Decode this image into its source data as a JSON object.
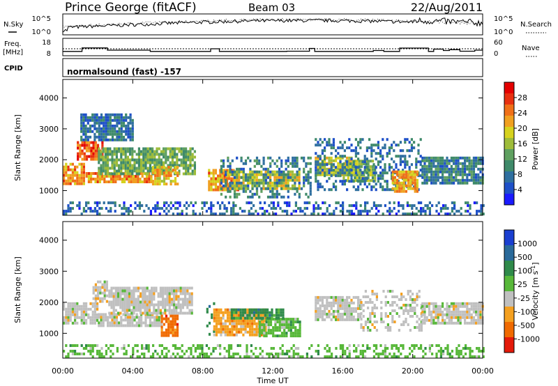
{
  "header": {
    "station": "Prince George (fitACF)",
    "beam": "Beam 03",
    "date": "22/Aug/2011"
  },
  "chart_data": [
    {
      "type": "line",
      "panel": "noise",
      "left_label": "N.Sky",
      "right_label": "N.Search",
      "left_ticks": [
        "10^5",
        "10^0"
      ],
      "right_ticks": [
        "10^5",
        "10^0"
      ]
    },
    {
      "type": "line",
      "panel": "frequency",
      "left_label_top": "Freq.",
      "left_label_bottom": "[MHz]",
      "right_label": "Nave",
      "left_ticks": [
        "18",
        "8"
      ],
      "right_ticks": [
        "60",
        "0"
      ],
      "freq_steps": [
        {
          "t": 0.0,
          "v": 10.5
        },
        {
          "t": 1.1,
          "v": 12.5
        },
        {
          "t": 2.55,
          "v": 11.2
        },
        {
          "t": 5.0,
          "v": 10.5
        },
        {
          "t": 8.45,
          "v": 12.0
        },
        {
          "t": 8.95,
          "v": 10.5
        },
        {
          "t": 12.8,
          "v": 10.6
        },
        {
          "t": 14.1,
          "v": 12.2
        },
        {
          "t": 14.4,
          "v": 10.5
        },
        {
          "t": 17.75,
          "v": 11.0
        },
        {
          "t": 18.35,
          "v": 10.5
        },
        {
          "t": 19.25,
          "v": 12.4
        },
        {
          "t": 20.9,
          "v": 10.5
        },
        {
          "t": 21.2,
          "v": 11.8
        },
        {
          "t": 21.75,
          "v": 11.0
        },
        {
          "t": 22.1,
          "v": 11.5
        },
        {
          "t": 22.7,
          "v": 10.6
        },
        {
          "t": 23.55,
          "v": 11.2
        }
      ]
    },
    {
      "type": "heatmap",
      "panel": "cpid",
      "label": "CPID",
      "text": "normalsound (fast) -157"
    },
    {
      "type": "heatmap",
      "panel": "power",
      "ylabel": "Slant Range [km]",
      "yticks": [
        "4000",
        "3000",
        "2000",
        "1000"
      ],
      "ylim": [
        200,
        4600
      ],
      "colorbar_label": "Power [dB]",
      "colorbar_ticks": [
        "28",
        "24",
        "20",
        "16",
        "12",
        "8",
        "4"
      ],
      "colors": [
        "#1a1aff",
        "#1e50c8",
        "#2f6f9f",
        "#3f8a6a",
        "#5fa060",
        "#9ebc3a",
        "#d6d21e",
        "#f0a020",
        "#f07018",
        "#e83010",
        "#e40000"
      ],
      "regions": [
        {
          "t0": 0.0,
          "t1": 1.2,
          "r0": 1250,
          "r1": 1900,
          "p": 22
        },
        {
          "t0": 0.8,
          "t1": 2.3,
          "r0": 2050,
          "r1": 2600,
          "p": 26
        },
        {
          "t0": 1.3,
          "t1": 5.0,
          "r0": 1300,
          "r1": 1600,
          "p": 22
        },
        {
          "t0": 2.0,
          "t1": 7.6,
          "r0": 1500,
          "r1": 2400,
          "p": 12
        },
        {
          "t0": 5.1,
          "t1": 6.6,
          "r0": 1200,
          "r1": 1800,
          "p": 20
        },
        {
          "t0": 1.0,
          "t1": 4.0,
          "r0": 2600,
          "r1": 3500,
          "p": 6
        },
        {
          "t0": 8.3,
          "t1": 10.0,
          "r0": 1000,
          "r1": 1700,
          "p": 22
        },
        {
          "t0": 9.5,
          "t1": 13.5,
          "r0": 1050,
          "r1": 1650,
          "p": 18
        },
        {
          "t0": 9.0,
          "t1": 14.2,
          "r0": 800,
          "r1": 2100,
          "p": 8
        },
        {
          "t0": 14.4,
          "t1": 16.5,
          "r0": 1500,
          "r1": 2100,
          "p": 18
        },
        {
          "t0": 16.0,
          "t1": 17.8,
          "r0": 1300,
          "r1": 2000,
          "p": 14
        },
        {
          "t0": 14.4,
          "t1": 20.5,
          "r0": 1000,
          "r1": 2700,
          "p": 6
        },
        {
          "t0": 18.8,
          "t1": 20.3,
          "r0": 950,
          "r1": 1650,
          "p": 21
        },
        {
          "t0": 20.5,
          "t1": 24.0,
          "r0": 1200,
          "r1": 2100,
          "p": 8
        },
        {
          "t0": 0.0,
          "t1": 24.0,
          "r0": 250,
          "r1": 650,
          "p": 5
        }
      ]
    },
    {
      "type": "heatmap",
      "panel": "velocity",
      "ylabel": "Slant Range [km]",
      "yticks": [
        "4000",
        "3000",
        "2000",
        "1000"
      ],
      "ylim": [
        200,
        4600
      ],
      "colorbar_label": "Velocity [m s^-1]",
      "colorbar_ticks": [
        "1000",
        "500",
        "100",
        "25",
        "-25",
        "-100",
        "-500",
        "-1000"
      ],
      "colors": [
        "#1a3fd0",
        "#2a6a9a",
        "#2f8a4a",
        "#58b83a",
        "#c0c0c0",
        "#f4a020",
        "#f06a00",
        "#e41a0a"
      ],
      "regions": [
        {
          "t0": 0.0,
          "t1": 2.0,
          "r0": 1300,
          "r1": 2000,
          "c": 4
        },
        {
          "t0": 1.7,
          "t1": 2.5,
          "r0": 2000,
          "r1": 2700,
          "c": 4
        },
        {
          "t0": 2.0,
          "t1": 5.6,
          "r0": 1250,
          "r1": 1650,
          "c": 4
        },
        {
          "t0": 2.6,
          "t1": 7.4,
          "r0": 1650,
          "r1": 2500,
          "c": 4
        },
        {
          "t0": 5.6,
          "t1": 6.6,
          "r0": 900,
          "r1": 1600,
          "c": 6
        },
        {
          "t0": 8.2,
          "t1": 8.6,
          "r0": 1000,
          "r1": 2000,
          "c": 2
        },
        {
          "t0": 8.6,
          "t1": 11.6,
          "r0": 950,
          "r1": 1800,
          "c": 5
        },
        {
          "t0": 11.2,
          "t1": 13.6,
          "r0": 900,
          "r1": 1500,
          "c": 3
        },
        {
          "t0": 9.6,
          "t1": 12.6,
          "r0": 1500,
          "r1": 1800,
          "c": 2
        },
        {
          "t0": 14.4,
          "t1": 17.0,
          "r0": 1400,
          "r1": 2200,
          "c": 4
        },
        {
          "t0": 17.0,
          "t1": 20.5,
          "r0": 1100,
          "r1": 2400,
          "c": 4
        },
        {
          "t0": 20.5,
          "t1": 24.0,
          "r0": 1300,
          "r1": 2000,
          "c": 4
        },
        {
          "t0": 0.0,
          "t1": 24.0,
          "r0": 250,
          "r1": 650,
          "c": 3
        }
      ]
    }
  ],
  "time_axis": {
    "xlabel": "Time UT",
    "ticks": [
      "00:00",
      "04:00",
      "08:00",
      "12:00",
      "16:00",
      "20:00",
      "00:00"
    ]
  }
}
